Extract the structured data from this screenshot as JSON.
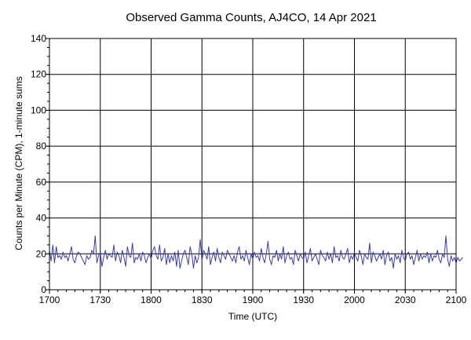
{
  "chart_data": {
    "type": "line",
    "title": "Observed Gamma Counts, AJ4CO, 14 Apr 2021",
    "xlabel": "Time (UTC)",
    "ylabel": "Counts per Minute (CPM), 1-minute sums",
    "x_tick_labels": [
      "1700",
      "1730",
      "1800",
      "1830",
      "1900",
      "1930",
      "2000",
      "2030",
      "2100"
    ],
    "y_tick_labels": [
      "0",
      "20",
      "40",
      "60",
      "80",
      "100",
      "120",
      "140"
    ],
    "ylim": [
      0,
      140
    ],
    "xlim_minutes": [
      0,
      240
    ],
    "grid": true,
    "series": [
      {
        "color": "#3a3ab0",
        "sample_interval_minutes": 1,
        "start_time": "1700",
        "values": [
          22,
          16,
          25,
          15,
          24,
          18,
          19,
          17,
          21,
          18,
          19,
          16,
          20,
          24,
          17,
          15,
          19,
          21,
          20,
          18,
          16,
          14,
          19,
          17,
          18,
          22,
          20,
          30,
          15,
          19,
          21,
          13,
          18,
          22,
          17,
          20,
          19,
          18,
          25,
          16,
          21,
          19,
          15,
          22,
          18,
          13,
          24,
          19,
          18,
          26,
          15,
          18,
          17,
          20,
          16,
          21,
          19,
          15,
          18,
          20,
          17,
          22,
          24,
          19,
          17,
          25,
          16,
          18,
          23,
          14,
          20,
          15,
          19,
          16,
          21,
          13,
          22,
          12,
          16,
          20,
          22,
          18,
          14,
          24,
          20,
          12,
          19,
          15,
          18,
          28,
          16,
          22,
          20,
          17,
          24,
          14,
          18,
          21,
          16,
          23,
          18,
          15,
          21,
          19,
          17,
          22,
          20,
          18,
          16,
          19,
          15,
          21,
          24,
          17,
          19,
          16,
          22,
          18,
          14,
          20,
          17,
          21,
          18,
          19,
          16,
          23,
          18,
          15,
          20,
          27,
          17,
          14,
          19,
          18,
          22,
          16,
          20,
          17,
          24,
          15,
          19,
          21,
          17,
          18,
          14,
          22,
          19,
          16,
          20,
          18,
          17,
          21,
          15,
          19,
          23,
          16,
          18,
          20,
          17,
          14,
          22,
          19,
          18,
          16,
          21,
          17,
          20,
          15,
          24,
          18,
          19,
          16,
          22,
          18,
          17,
          20,
          23,
          15,
          19,
          17,
          21,
          18,
          16,
          22,
          19,
          14,
          20,
          18,
          17,
          26,
          15,
          21,
          19,
          16,
          18,
          20,
          17,
          22,
          14,
          19,
          21,
          16,
          18,
          12,
          20,
          17,
          19,
          15,
          22,
          18,
          16,
          20,
          21,
          17,
          19,
          14,
          18,
          22,
          16,
          20,
          17,
          19,
          18,
          21,
          15,
          20,
          16,
          19,
          18,
          22,
          17,
          15,
          20,
          18,
          30,
          17,
          13,
          19,
          16,
          18,
          15,
          18,
          16,
          17,
          18
        ]
      }
    ]
  }
}
